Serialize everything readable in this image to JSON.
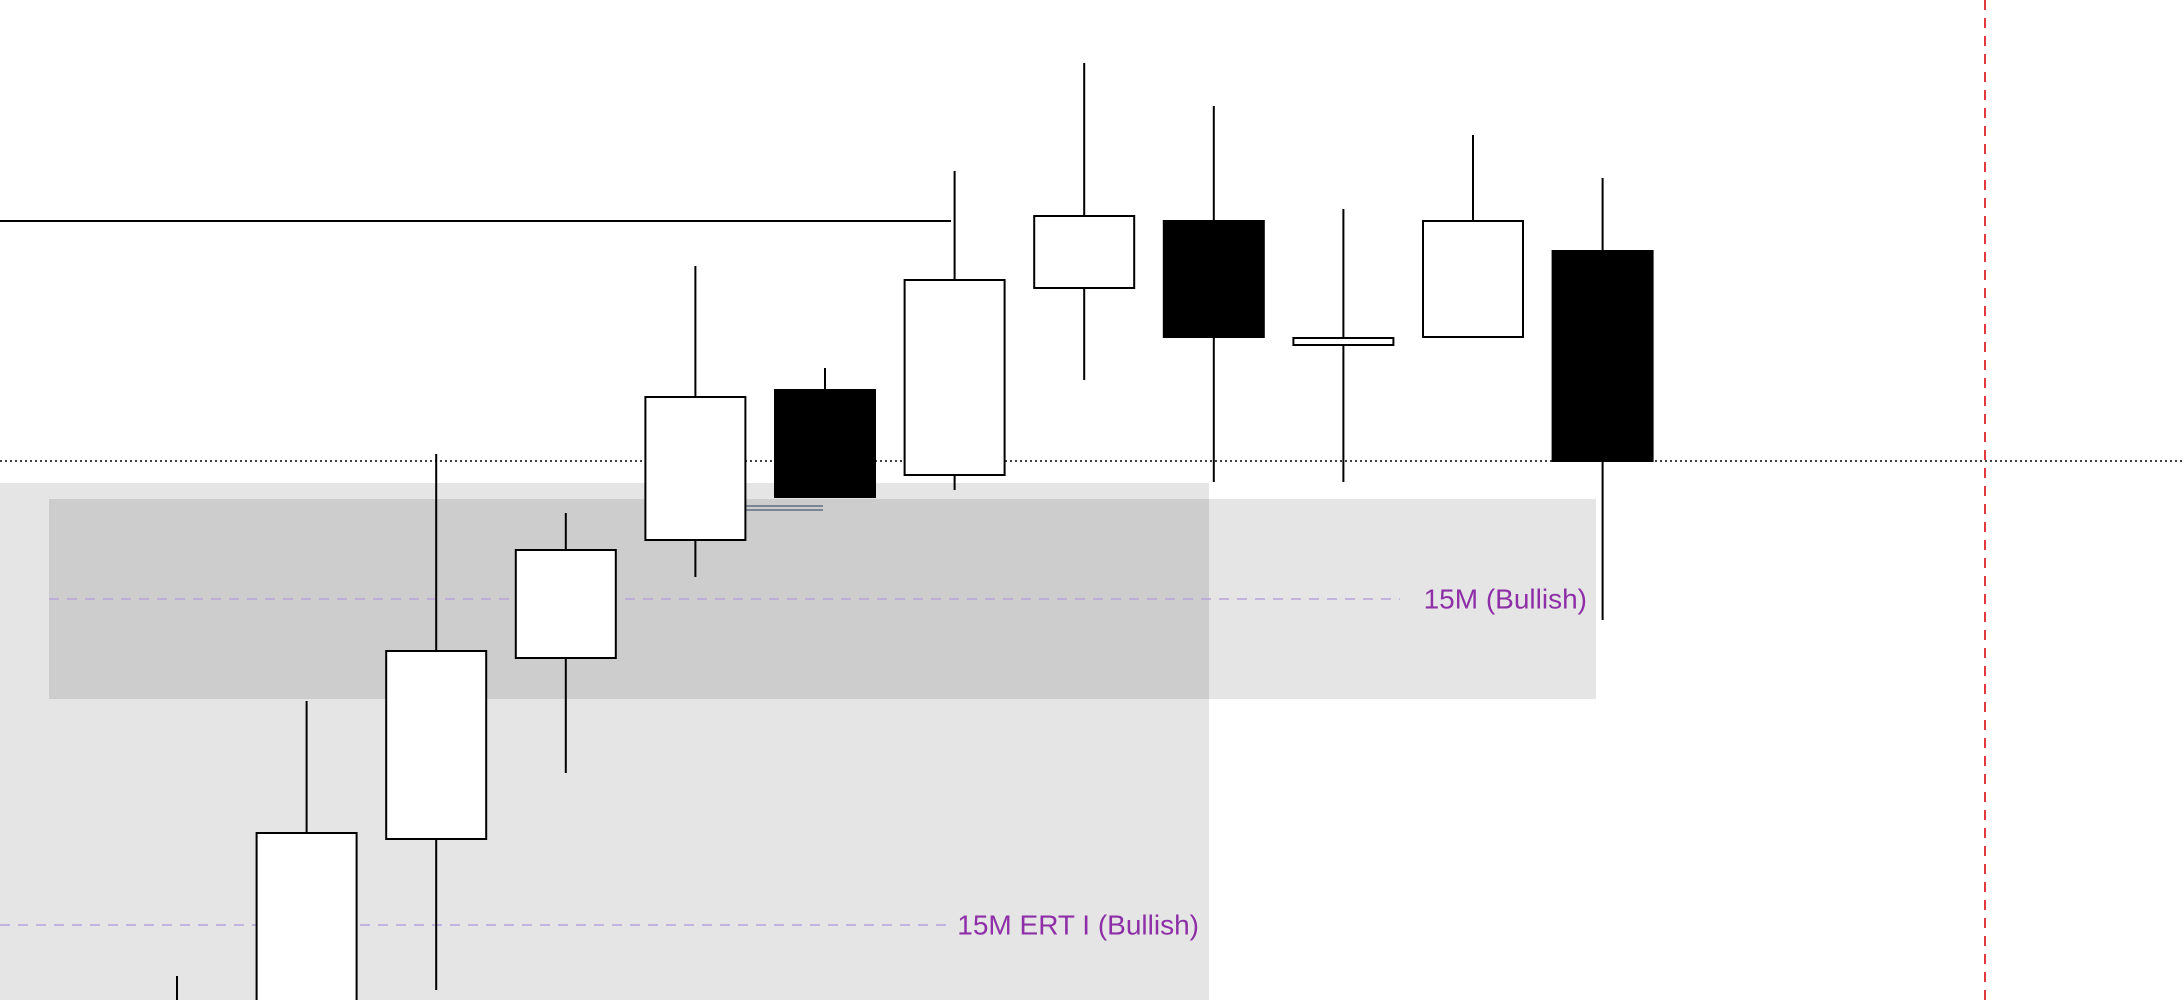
{
  "chart_data": {
    "type": "candlestick",
    "ylim": [
      0,
      1000
    ],
    "up_color": "#ffffff",
    "down_color": "#000000",
    "open": [
      null,
      null,
      161,
      342,
      460,
      610,
      525,
      712,
      779,
      655,
      663,
      749
    ],
    "high": [
      24,
      299,
      546,
      487,
      734,
      632,
      829,
      937,
      894,
      791,
      865,
      822
    ],
    "low": [
      null,
      null,
      10,
      227,
      423,
      503,
      510,
      620,
      518,
      518,
      663,
      380
    ],
    "close": [
      null,
      167,
      349,
      450,
      603,
      503,
      720,
      784,
      663,
      662,
      779,
      539
    ],
    "levels": [
      {
        "value": 779,
        "style": "solid"
      },
      {
        "value": 539,
        "style": "dotted"
      }
    ],
    "zones": [
      {
        "label": "15M ERT I (Bullish)",
        "top": 517,
        "bottom": null,
        "mid": 75
      },
      {
        "label": "15M (Bullish)",
        "top": 501,
        "bottom": 301,
        "mid": 401
      }
    ]
  }
}
